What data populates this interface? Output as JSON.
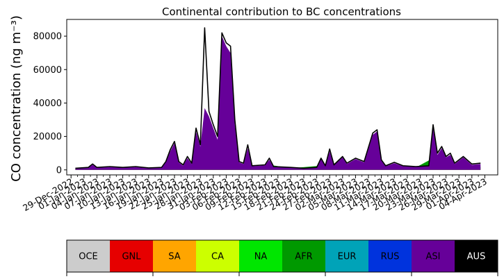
{
  "chart_data": {
    "type": "area",
    "title": "Continental contribution to BC concentrations",
    "ylabel": "CO concentration (ng m⁻³)",
    "xlabel": "",
    "x_range": [
      "2022-12-28",
      "2023-04-07"
    ],
    "ylim": [
      -3000,
      90000
    ],
    "y_ticks": [
      0,
      20000,
      40000,
      60000,
      80000
    ],
    "x_tick_labels": [
      "29-Dec-2022",
      "01-Jan-2023",
      "04-Jan-2023",
      "07-Jan-2023",
      "10-Jan-2023",
      "13-Jan-2023",
      "16-Jan-2023",
      "19-Jan-2023",
      "22-Jan-2023",
      "25-Jan-2023",
      "28-Jan-2023",
      "31-Jan-2023",
      "03-Feb-2023",
      "06-Feb-2023",
      "09-Feb-2023",
      "12-Feb-2023",
      "15-Feb-2023",
      "18-Feb-2023",
      "21-Feb-2023",
      "24-Feb-2023",
      "27-Feb-2023",
      "02-Mar-2023",
      "05-Mar-2023",
      "08-Mar-2023",
      "11-Mar-2023",
      "14-Mar-2023",
      "17-Mar-2023",
      "20-Mar-2023",
      "23-Mar-2023",
      "26-Mar-2023",
      "29-Mar-2023",
      "01-Apr-2023",
      "04-Apr-2023"
    ],
    "grid": false,
    "total_line": {
      "color": "#000000",
      "points": [
        [
          "2022-12-30",
          1000
        ],
        [
          "2023-01-02",
          1500
        ],
        [
          "2023-01-03",
          3500
        ],
        [
          "2023-01-04",
          1500
        ],
        [
          "2023-01-07",
          2000
        ],
        [
          "2023-01-10",
          1500
        ],
        [
          "2023-01-13",
          2000
        ],
        [
          "2023-01-16",
          1200
        ],
        [
          "2023-01-19",
          1500
        ],
        [
          "2023-01-20",
          5000
        ],
        [
          "2023-01-21",
          12000
        ],
        [
          "2023-01-22",
          17000
        ],
        [
          "2023-01-23",
          5000
        ],
        [
          "2023-01-24",
          3000
        ],
        [
          "2023-01-25",
          8000
        ],
        [
          "2023-01-26",
          4000
        ],
        [
          "2023-01-27",
          25000
        ],
        [
          "2023-01-28",
          15000
        ],
        [
          "2023-01-29",
          85000
        ],
        [
          "2023-01-30",
          35000
        ],
        [
          "2023-01-31",
          27000
        ],
        [
          "2023-02-01",
          20000
        ],
        [
          "2023-02-02",
          82000
        ],
        [
          "2023-02-03",
          76000
        ],
        [
          "2023-02-04",
          74000
        ],
        [
          "2023-02-05",
          30000
        ],
        [
          "2023-02-06",
          5000
        ],
        [
          "2023-02-07",
          4000
        ],
        [
          "2023-02-08",
          15000
        ],
        [
          "2023-02-09",
          2500
        ],
        [
          "2023-02-12",
          3000
        ],
        [
          "2023-02-13",
          7000
        ],
        [
          "2023-02-14",
          2000
        ],
        [
          "2023-02-18",
          1500
        ],
        [
          "2023-02-21",
          1000
        ],
        [
          "2023-02-24",
          1500
        ],
        [
          "2023-02-25",
          7000
        ],
        [
          "2023-02-26",
          2500
        ],
        [
          "2023-02-27",
          12500
        ],
        [
          "2023-02-28",
          3000
        ],
        [
          "2023-03-02",
          8000
        ],
        [
          "2023-03-03",
          4000
        ],
        [
          "2023-03-05",
          7000
        ],
        [
          "2023-03-07",
          5000
        ],
        [
          "2023-03-09",
          22000
        ],
        [
          "2023-03-10",
          24000
        ],
        [
          "2023-03-11",
          6000
        ],
        [
          "2023-03-12",
          2500
        ],
        [
          "2023-03-14",
          4500
        ],
        [
          "2023-03-16",
          2500
        ],
        [
          "2023-03-19",
          2000
        ],
        [
          "2023-03-22",
          2500
        ],
        [
          "2023-03-23",
          27000
        ],
        [
          "2023-03-24",
          10000
        ],
        [
          "2023-03-25",
          14000
        ],
        [
          "2023-03-26",
          8000
        ],
        [
          "2023-03-27",
          10000
        ],
        [
          "2023-03-28",
          4000
        ],
        [
          "2023-03-30",
          8000
        ],
        [
          "2023-04-01",
          3500
        ],
        [
          "2023-04-03",
          4000
        ]
      ]
    },
    "stacks": [
      {
        "color": "#ffa500",
        "points": [
          [
            "2022-12-30",
            300
          ],
          [
            "2023-01-20",
            500
          ],
          [
            "2023-01-30",
            800
          ],
          [
            "2023-02-10",
            500
          ],
          [
            "2023-02-24",
            500
          ],
          [
            "2023-03-10",
            800
          ],
          [
            "2023-03-20",
            1500
          ],
          [
            "2023-03-24",
            2000
          ],
          [
            "2023-03-30",
            1000
          ],
          [
            "2023-04-03",
            800
          ]
        ]
      },
      {
        "color": "#009900",
        "points": [
          [
            "2022-12-30",
            500
          ],
          [
            "2023-01-19",
            900
          ],
          [
            "2023-01-20",
            1500
          ],
          [
            "2023-01-22",
            2500
          ],
          [
            "2023-01-24",
            1200
          ],
          [
            "2023-01-27",
            3000
          ],
          [
            "2023-01-29",
            10000
          ],
          [
            "2023-01-31",
            6000
          ],
          [
            "2023-02-01",
            7000
          ],
          [
            "2023-02-02",
            57000
          ],
          [
            "2023-02-03",
            56000
          ],
          [
            "2023-02-04",
            40000
          ],
          [
            "2023-02-05",
            15000
          ],
          [
            "2023-02-06",
            3000
          ],
          [
            "2023-02-08",
            3000
          ],
          [
            "2023-02-10",
            1500
          ],
          [
            "2023-02-13",
            3000
          ],
          [
            "2023-02-18",
            1000
          ],
          [
            "2023-02-25",
            2500
          ],
          [
            "2023-02-27",
            4000
          ],
          [
            "2023-03-02",
            3000
          ],
          [
            "2023-03-05",
            3500
          ],
          [
            "2023-03-07",
            3000
          ],
          [
            "2023-03-09",
            9000
          ],
          [
            "2023-03-10",
            10000
          ],
          [
            "2023-03-11",
            3000
          ],
          [
            "2023-03-14",
            2000
          ],
          [
            "2023-03-19",
            1500
          ],
          [
            "2023-03-23",
            7000
          ],
          [
            "2023-03-24",
            3500
          ],
          [
            "2023-03-25",
            5000
          ],
          [
            "2023-03-27",
            3500
          ],
          [
            "2023-03-30",
            3000
          ],
          [
            "2023-04-03",
            2000
          ]
        ]
      },
      {
        "color": "#660099",
        "points": [
          [
            "2022-12-30",
            900
          ],
          [
            "2023-01-02",
            1300
          ],
          [
            "2023-01-03",
            3000
          ],
          [
            "2023-01-04",
            1300
          ],
          [
            "2023-01-07",
            1700
          ],
          [
            "2023-01-10",
            1300
          ],
          [
            "2023-01-13",
            1700
          ],
          [
            "2023-01-16",
            1000
          ],
          [
            "2023-01-19",
            1300
          ],
          [
            "2023-01-20",
            4500
          ],
          [
            "2023-01-21",
            11000
          ],
          [
            "2023-01-22",
            16000
          ],
          [
            "2023-01-23",
            4500
          ],
          [
            "2023-01-24",
            2500
          ],
          [
            "2023-01-25",
            7000
          ],
          [
            "2023-01-26",
            3500
          ],
          [
            "2023-01-27",
            23000
          ],
          [
            "2023-01-28",
            14000
          ],
          [
            "2023-01-29",
            37000
          ],
          [
            "2023-01-30",
            32000
          ],
          [
            "2023-01-31",
            25000
          ],
          [
            "2023-02-01",
            18000
          ],
          [
            "2023-02-02",
            80000
          ],
          [
            "2023-02-03",
            74000
          ],
          [
            "2023-02-04",
            70000
          ],
          [
            "2023-02-05",
            27000
          ],
          [
            "2023-02-06",
            4500
          ],
          [
            "2023-02-07",
            3500
          ],
          [
            "2023-02-08",
            13000
          ],
          [
            "2023-02-09",
            2200
          ],
          [
            "2023-02-12",
            2700
          ],
          [
            "2023-02-13",
            6000
          ],
          [
            "2023-02-14",
            1700
          ],
          [
            "2023-02-18",
            1300
          ],
          [
            "2023-02-21",
            900
          ],
          [
            "2023-02-24",
            1300
          ],
          [
            "2023-02-25",
            6500
          ],
          [
            "2023-02-26",
            2200
          ],
          [
            "2023-02-27",
            11000
          ],
          [
            "2023-02-28",
            2700
          ],
          [
            "2023-03-02",
            7500
          ],
          [
            "2023-03-03",
            3500
          ],
          [
            "2023-03-05",
            6500
          ],
          [
            "2023-03-07",
            4500
          ],
          [
            "2023-03-09",
            21000
          ],
          [
            "2023-03-10",
            23000
          ],
          [
            "2023-03-11",
            5500
          ],
          [
            "2023-03-12",
            2200
          ],
          [
            "2023-03-14",
            4000
          ],
          [
            "2023-03-16",
            2200
          ],
          [
            "2023-03-19",
            1800
          ],
          [
            "2023-03-22",
            2200
          ],
          [
            "2023-03-23",
            25000
          ],
          [
            "2023-03-24",
            9000
          ],
          [
            "2023-03-25",
            13000
          ],
          [
            "2023-03-26",
            7500
          ],
          [
            "2023-03-27",
            9000
          ],
          [
            "2023-03-28",
            3500
          ],
          [
            "2023-03-30",
            7500
          ],
          [
            "2023-04-01",
            3000
          ],
          [
            "2023-04-03",
            3500
          ]
        ]
      }
    ],
    "legend_placement": "bottom",
    "legend": [
      {
        "label": "OCE",
        "color": "#cccccc",
        "text_color": "#000000"
      },
      {
        "label": "GNL",
        "color": "#e60000",
        "text_color": "#000000"
      },
      {
        "label": "SA",
        "color": "#ffa500",
        "text_color": "#000000"
      },
      {
        "label": "CA",
        "color": "#ccff00",
        "text_color": "#000000"
      },
      {
        "label": "NA",
        "color": "#00e600",
        "text_color": "#000000"
      },
      {
        "label": "AFR",
        "color": "#009900",
        "text_color": "#000000"
      },
      {
        "label": "EUR",
        "color": "#00a3b8",
        "text_color": "#000000"
      },
      {
        "label": "RUS",
        "color": "#0033dd",
        "text_color": "#000000"
      },
      {
        "label": "ASI",
        "color": "#660099",
        "text_color": "#000000"
      },
      {
        "label": "AUS",
        "color": "#000000",
        "text_color": "#ffffff"
      }
    ]
  }
}
